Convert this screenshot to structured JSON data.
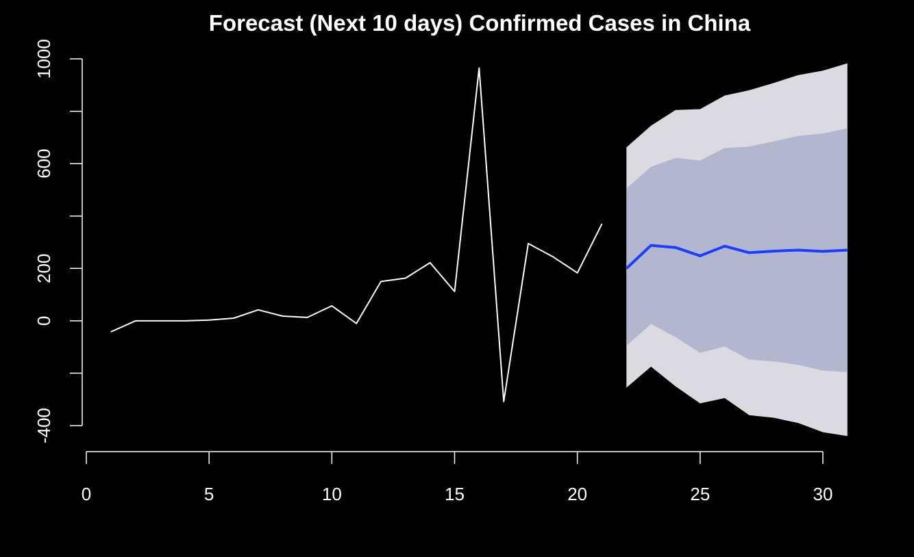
{
  "colors": {
    "background": "#000000",
    "foreground": "#ffffff",
    "observed_line": "#ffffff",
    "forecast_line": "#1a3dff",
    "band_95": "#dadae0",
    "band_80": "#b3b6cf"
  },
  "chart_data": {
    "type": "line",
    "title": "Forecast (Next 10 days) Confirmed Cases in China",
    "xlabel": "",
    "ylabel": "",
    "xlim": [
      0,
      31
    ],
    "ylim": [
      -400,
      1000
    ],
    "x_ticks": [
      0,
      5,
      10,
      15,
      20,
      25,
      30
    ],
    "x_tick_labels": [
      "0",
      "5",
      "10",
      "15",
      "20",
      "25",
      "30"
    ],
    "y_ticks": [
      -400,
      -200,
      0,
      200,
      400,
      600,
      800,
      1000
    ],
    "y_tick_labels": [
      "-400",
      "",
      "0",
      "200",
      "",
      "600",
      "",
      "1000"
    ],
    "grid": false,
    "legend": "none",
    "series": [
      {
        "role": "observed",
        "x": [
          1,
          2,
          3,
          4,
          5,
          6,
          7,
          8,
          9,
          10,
          11,
          12,
          13,
          14,
          15,
          16,
          17,
          18,
          19,
          20,
          21
        ],
        "values": [
          -42,
          0,
          0,
          0,
          3,
          10,
          42,
          18,
          13,
          57,
          -10,
          150,
          163,
          222,
          112,
          965,
          -308,
          295,
          245,
          183,
          370
        ]
      },
      {
        "role": "forecast_mean",
        "x": [
          22,
          23,
          24,
          25,
          26,
          27,
          28,
          29,
          30,
          31
        ],
        "values": [
          200,
          288,
          280,
          248,
          285,
          260,
          266,
          270,
          265,
          270
        ]
      }
    ],
    "intervals": [
      {
        "role": "band_95",
        "x": [
          22,
          23,
          24,
          25,
          26,
          27,
          28,
          29,
          30,
          31
        ],
        "lower": [
          -255,
          -175,
          -250,
          -315,
          -295,
          -360,
          -370,
          -390,
          -425,
          -440
        ],
        "upper": [
          662,
          745,
          805,
          808,
          860,
          880,
          908,
          938,
          955,
          983
        ]
      },
      {
        "role": "band_80",
        "x": [
          22,
          23,
          24,
          25,
          26,
          27,
          28,
          29,
          30,
          31
        ],
        "lower": [
          -95,
          -12,
          -62,
          -122,
          -98,
          -148,
          -155,
          -168,
          -190,
          -196
        ],
        "upper": [
          505,
          588,
          622,
          612,
          660,
          665,
          685,
          706,
          715,
          735
        ]
      }
    ]
  }
}
